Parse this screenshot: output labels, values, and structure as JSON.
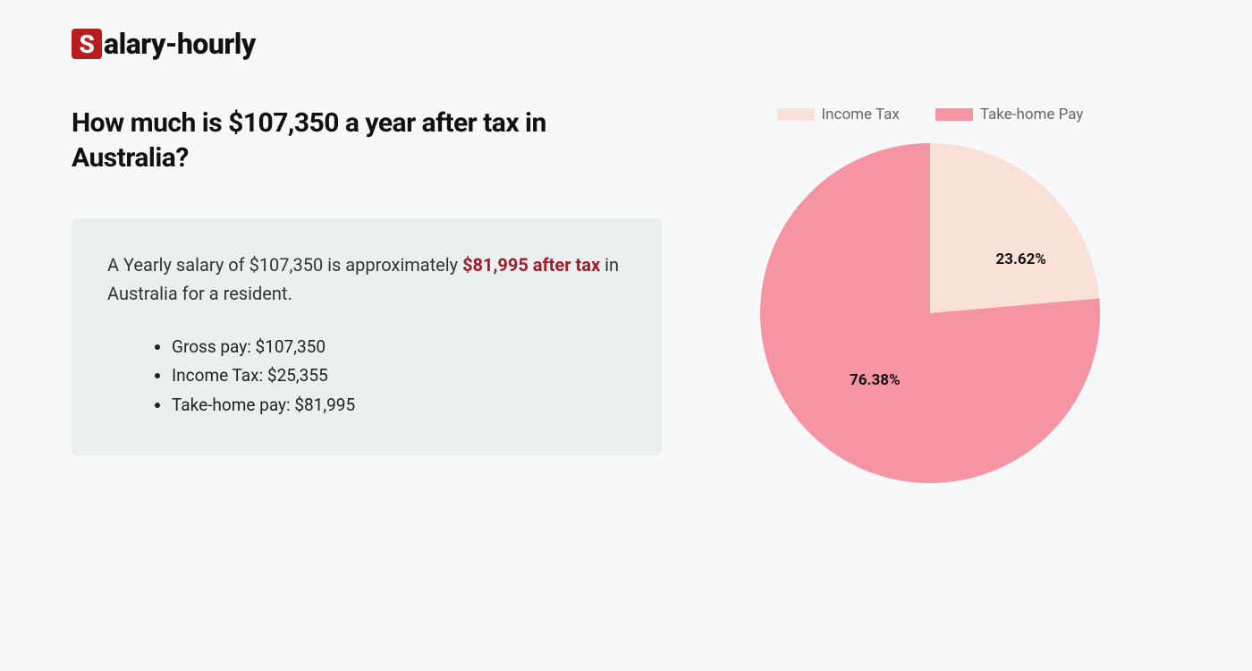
{
  "logo": {
    "s": "S",
    "rest": "alary-hourly"
  },
  "heading": "How much is $107,350 a year after tax in Australia?",
  "summary": {
    "prefix": "A Yearly salary of $107,350 is approximately ",
    "highlight": "$81,995 after tax",
    "suffix": " in Australia for a resident."
  },
  "bullets": [
    "Gross pay: $107,350",
    "Income Tax: $25,355",
    "Take-home pay: $81,995"
  ],
  "legend": {
    "tax": "Income Tax",
    "take": "Take-home Pay"
  },
  "chart": {
    "type": "pie",
    "background_color": "#f6f8fa",
    "radius": 190,
    "slices": [
      {
        "label": "Income Tax",
        "value": 23.62,
        "display": "23.62%",
        "color": "#f9e1d8"
      },
      {
        "label": "Take-home Pay",
        "value": 76.38,
        "display": "76.38%",
        "color": "#f595a3"
      }
    ],
    "label_fontsize": 17,
    "label_fontweight": 700,
    "label_color": "#111",
    "legend_fontsize": 17,
    "legend_color": "#666",
    "legend_swatch_w": 42,
    "legend_swatch_h": 14
  },
  "colors": {
    "page_bg": "#f6f8fa",
    "box_bg": "#eaf0f0",
    "highlight": "#a11d2a",
    "logo_bg": "#b91c1c",
    "text": "#111"
  }
}
